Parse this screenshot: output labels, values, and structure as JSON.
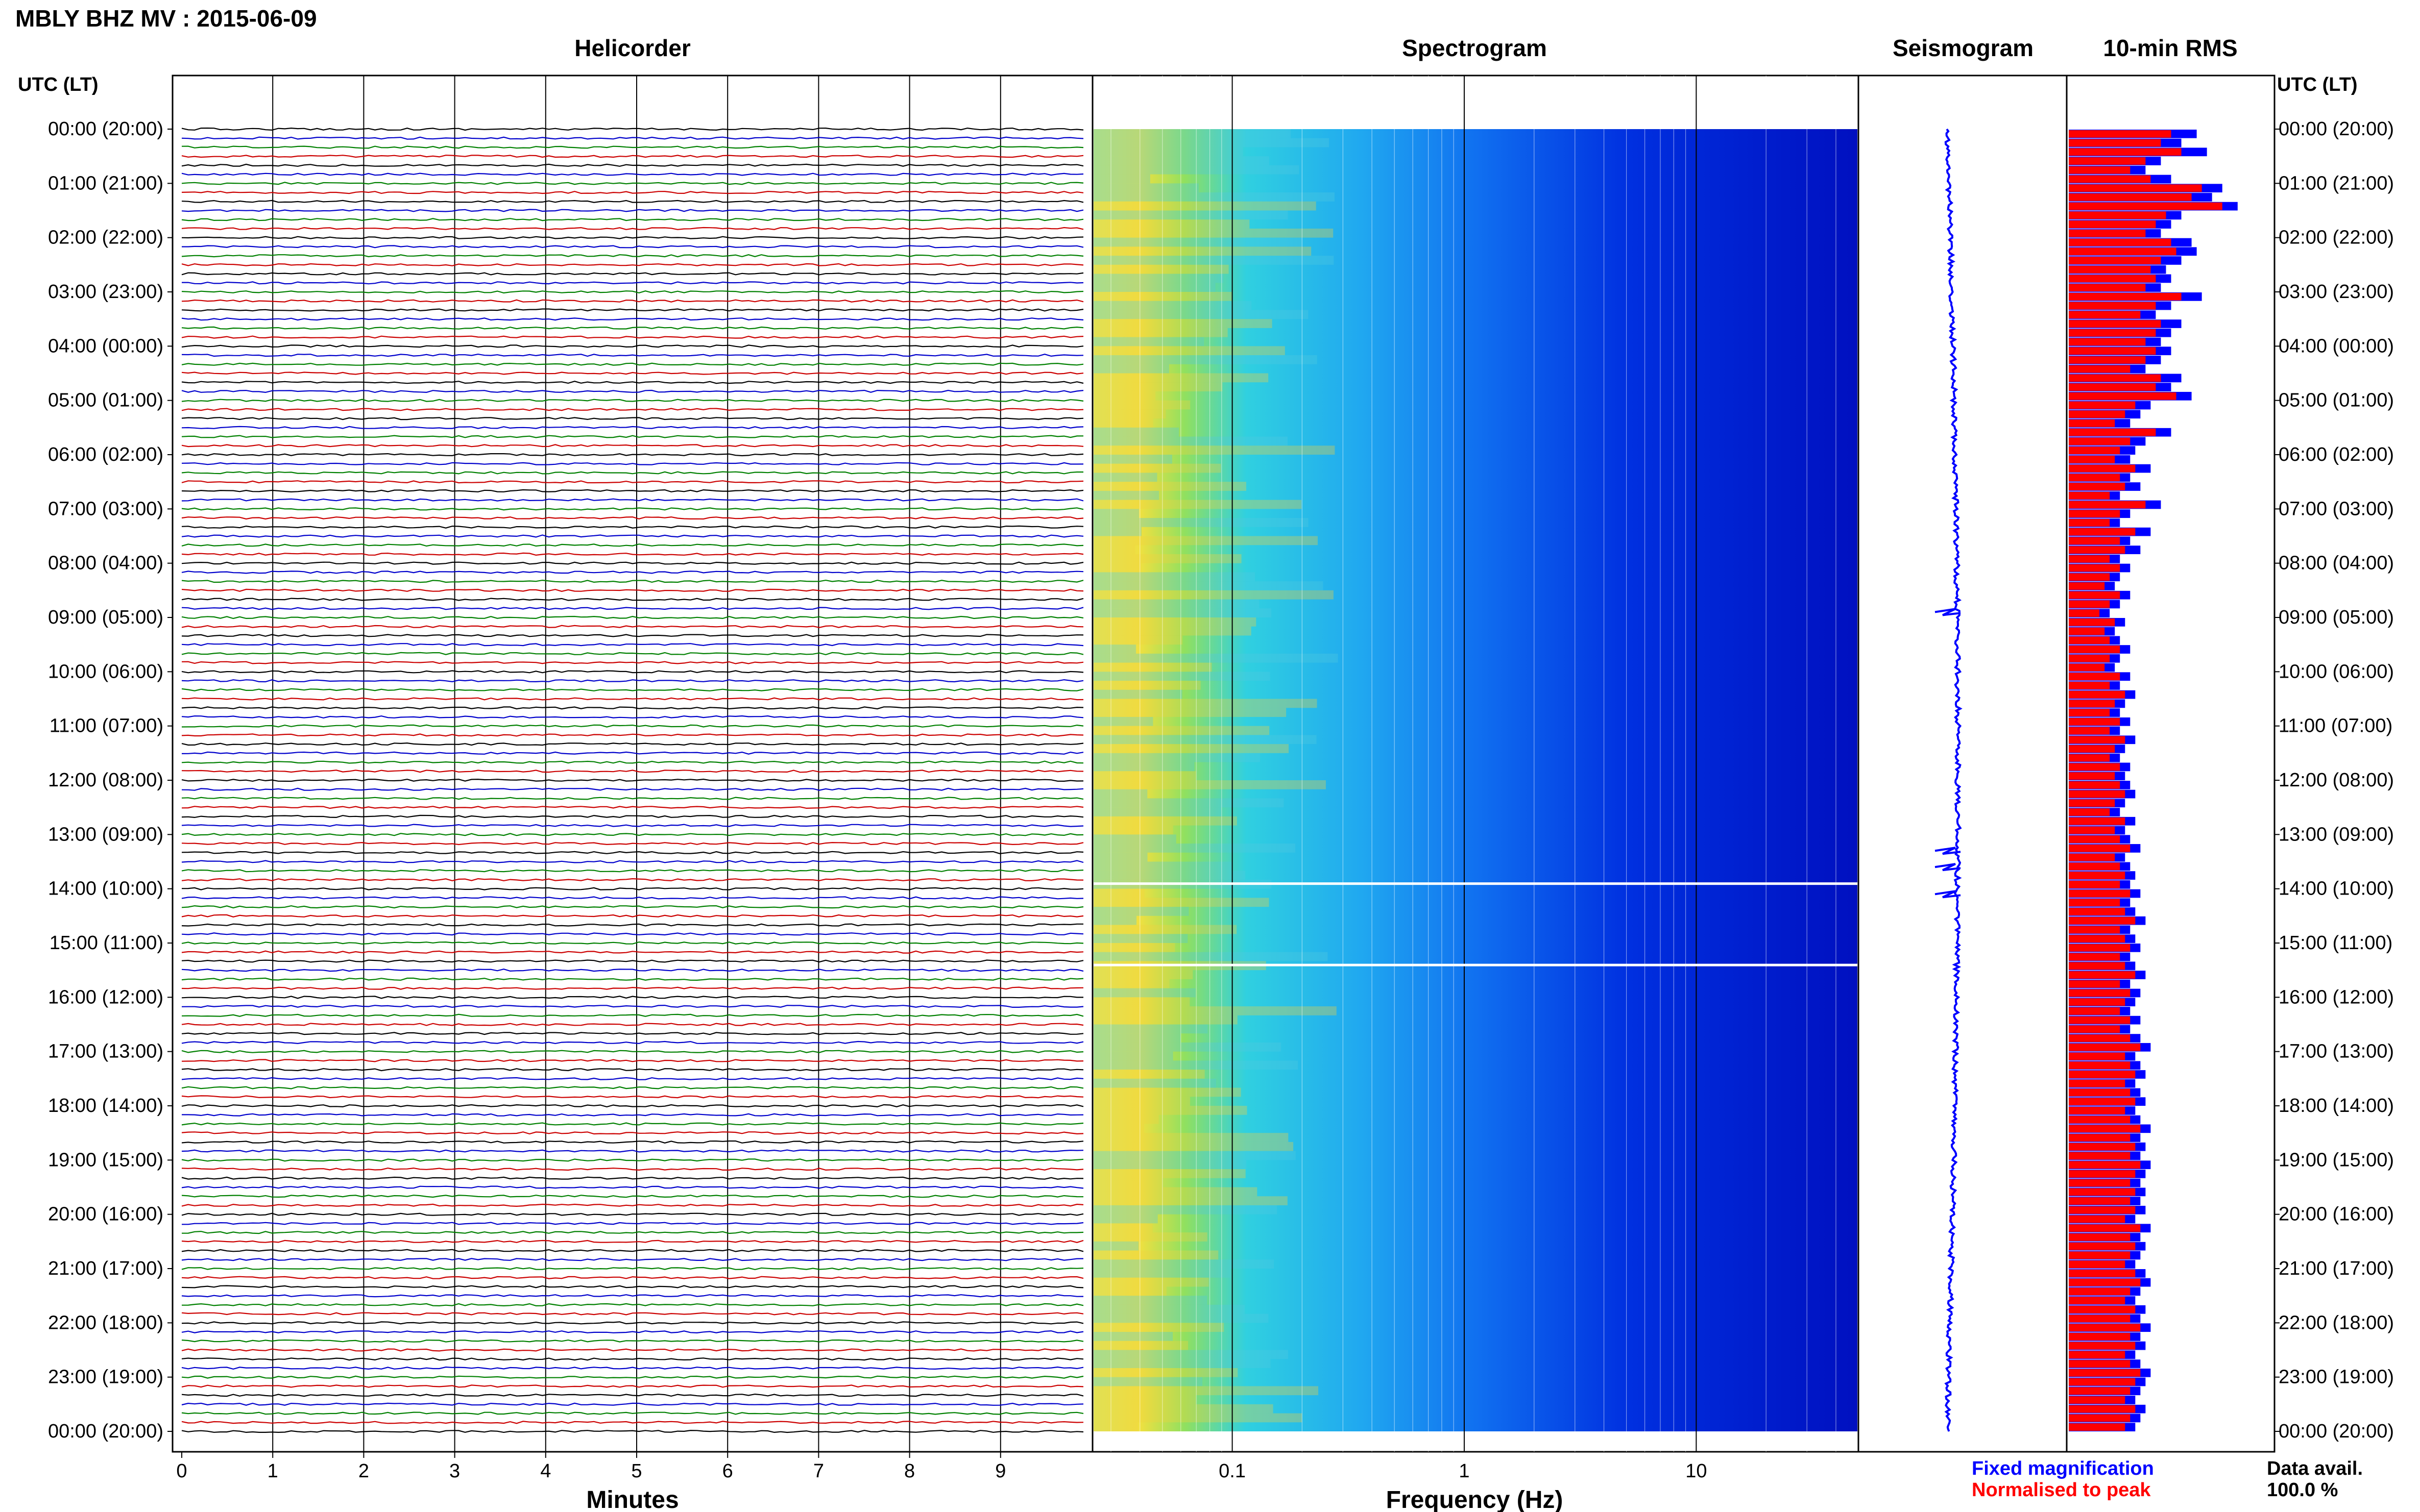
{
  "header": {
    "title": "MBLY BHZ MV : 2015-06-09"
  },
  "panels": {
    "helicorder": "Helicorder",
    "spectrogram": "Spectrogram",
    "seismogram": "Seismogram",
    "rms": "10-min RMS"
  },
  "axes": {
    "utc_label_left": "UTC (LT)",
    "utc_label_right": "UTC (LT)",
    "helicorder_xlabel": "Minutes",
    "spectrogram_xlabel": "Frequency (Hz)"
  },
  "legend": {
    "fixed": "Fixed magnification",
    "normalised": "Normalised to peak",
    "fixed_color": "#0000ff",
    "normalised_color": "#ff0000"
  },
  "data_avail": {
    "label": "Data avail.",
    "value": "100.0 %"
  },
  "colors": {
    "trace_cycle": [
      "#000000",
      "#0000cc",
      "#008000",
      "#cc0000"
    ],
    "spectro_low": "#f0e040",
    "spectro_mid": "#30d0e0",
    "spectro_high": "#0000c8"
  },
  "chart_data": [
    {
      "type": "line",
      "title": "Helicorder",
      "xlabel": "Minutes",
      "x_ticks": [
        "0",
        "1",
        "2",
        "3",
        "4",
        "5",
        "6",
        "7",
        "8",
        "9"
      ],
      "xlim": [
        0,
        10
      ],
      "rows_per_hour": 6,
      "hours": 24,
      "time_labels": [
        "00:00 (20:00)",
        "01:00 (21:00)",
        "02:00 (22:00)",
        "03:00 (23:00)",
        "04:00 (00:00)",
        "05:00 (01:00)",
        "06:00 (02:00)",
        "07:00 (03:00)",
        "08:00 (04:00)",
        "09:00 (05:00)",
        "10:00 (06:00)",
        "11:00 (07:00)",
        "12:00 (08:00)",
        "13:00 (09:00)",
        "14:00 (10:00)",
        "15:00 (11:00)",
        "16:00 (12:00)",
        "17:00 (13:00)",
        "18:00 (14:00)",
        "19:00 (15:00)",
        "20:00 (16:00)",
        "21:00 (17:00)",
        "22:00 (18:00)",
        "23:00 (19:00)",
        "00:00 (20:00)"
      ],
      "grid": true
    },
    {
      "type": "heatmap",
      "title": "Spectrogram",
      "xlabel": "Frequency (Hz)",
      "x_scale": "log",
      "x_ticks": [
        "0.1",
        "1",
        "10"
      ],
      "xlim": [
        0.025,
        50
      ],
      "grid": true
    },
    {
      "type": "line",
      "title": "Seismogram",
      "note_events_utc_hours": [
        8.9,
        13.3,
        13.6,
        14.1
      ]
    },
    {
      "type": "bar",
      "title": "10-min RMS",
      "series": [
        {
          "name": "Fixed magnification",
          "values": [
            0.25,
            0.22,
            0.27,
            0.18,
            0.15,
            0.2,
            0.3,
            0.28,
            0.33,
            0.22,
            0.2,
            0.18,
            0.24,
            0.25,
            0.22,
            0.19,
            0.2,
            0.18,
            0.26,
            0.2,
            0.17,
            0.22,
            0.2,
            0.18,
            0.2,
            0.18,
            0.15,
            0.22,
            0.2,
            0.24,
            0.16,
            0.14,
            0.12,
            0.2,
            0.15,
            0.13,
            0.12,
            0.16,
            0.12,
            0.14,
            0.1,
            0.18,
            0.12,
            0.1,
            0.16,
            0.12,
            0.14,
            0.1,
            0.12,
            0.1,
            0.09,
            0.12,
            0.1,
            0.08,
            0.11,
            0.09,
            0.1,
            0.12,
            0.1,
            0.09,
            0.12,
            0.1,
            0.13,
            0.11,
            0.1,
            0.12,
            0.1,
            0.13,
            0.11,
            0.1,
            0.12,
            0.11,
            0.12,
            0.13,
            0.11,
            0.1,
            0.13,
            0.11,
            0.12,
            0.14,
            0.11,
            0.12,
            0.13,
            0.12,
            0.14,
            0.12,
            0.13,
            0.15,
            0.12,
            0.13,
            0.14,
            0.12,
            0.13,
            0.15,
            0.12,
            0.14,
            0.13,
            0.12,
            0.14,
            0.12,
            0.14,
            0.16,
            0.13,
            0.14,
            0.15,
            0.13,
            0.14,
            0.15,
            0.13,
            0.14,
            0.16,
            0.14,
            0.15,
            0.14,
            0.16,
            0.15,
            0.14,
            0.15,
            0.14,
            0.15,
            0.13,
            0.16,
            0.14,
            0.15,
            0.14,
            0.13,
            0.15,
            0.16,
            0.14,
            0.13,
            0.15,
            0.14,
            0.16,
            0.14,
            0.15,
            0.13,
            0.14,
            0.16,
            0.15,
            0.14,
            0.13,
            0.15,
            0.14,
            0.13
          ]
        },
        {
          "name": "Normalised to peak",
          "values": [
            0.2,
            0.18,
            0.22,
            0.15,
            0.12,
            0.16,
            0.26,
            0.24,
            0.3,
            0.19,
            0.17,
            0.15,
            0.2,
            0.21,
            0.18,
            0.16,
            0.17,
            0.15,
            0.22,
            0.17,
            0.14,
            0.18,
            0.17,
            0.15,
            0.17,
            0.15,
            0.12,
            0.18,
            0.17,
            0.21,
            0.13,
            0.11,
            0.09,
            0.17,
            0.12,
            0.1,
            0.09,
            0.13,
            0.1,
            0.11,
            0.08,
            0.15,
            0.1,
            0.08,
            0.13,
            0.1,
            0.11,
            0.08,
            0.1,
            0.08,
            0.07,
            0.1,
            0.08,
            0.06,
            0.09,
            0.07,
            0.08,
            0.1,
            0.08,
            0.07,
            0.1,
            0.08,
            0.11,
            0.09,
            0.08,
            0.1,
            0.08,
            0.11,
            0.09,
            0.08,
            0.1,
            0.09,
            0.1,
            0.11,
            0.09,
            0.08,
            0.11,
            0.09,
            0.1,
            0.12,
            0.09,
            0.1,
            0.11,
            0.1,
            0.12,
            0.1,
            0.11,
            0.13,
            0.1,
            0.11,
            0.12,
            0.1,
            0.11,
            0.13,
            0.1,
            0.12,
            0.11,
            0.1,
            0.12,
            0.1,
            0.12,
            0.14,
            0.11,
            0.12,
            0.13,
            0.11,
            0.12,
            0.13,
            0.11,
            0.12,
            0.14,
            0.12,
            0.13,
            0.12,
            0.14,
            0.13,
            0.12,
            0.13,
            0.12,
            0.13,
            0.11,
            0.14,
            0.12,
            0.13,
            0.12,
            0.11,
            0.13,
            0.14,
            0.12,
            0.11,
            0.13,
            0.12,
            0.14,
            0.12,
            0.13,
            0.11,
            0.12,
            0.14,
            0.13,
            0.12,
            0.11,
            0.13,
            0.12,
            0.11
          ]
        }
      ]
    }
  ]
}
